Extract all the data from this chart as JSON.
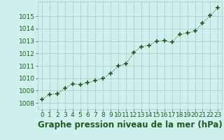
{
  "x": [
    0,
    1,
    2,
    3,
    4,
    5,
    6,
    7,
    8,
    9,
    10,
    11,
    12,
    13,
    14,
    15,
    16,
    17,
    18,
    19,
    20,
    21,
    22,
    23
  ],
  "y": [
    1008.3,
    1008.7,
    1008.75,
    1009.2,
    1009.55,
    1009.5,
    1009.65,
    1009.8,
    1010.0,
    1010.4,
    1011.0,
    1011.15,
    1012.1,
    1012.55,
    1012.65,
    1013.0,
    1013.05,
    1012.9,
    1013.55,
    1013.65,
    1013.8,
    1014.45,
    1015.05,
    1015.7
  ],
  "ylim": [
    1007.5,
    1016.2
  ],
  "yticks": [
    1008,
    1009,
    1010,
    1011,
    1012,
    1013,
    1014,
    1015
  ],
  "xticks": [
    0,
    1,
    2,
    3,
    4,
    5,
    6,
    7,
    8,
    9,
    10,
    11,
    12,
    13,
    14,
    15,
    16,
    17,
    18,
    19,
    20,
    21,
    22,
    23
  ],
  "xlabel": "Graphe pression niveau de la mer (hPa)",
  "line_color": "#1e5c1e",
  "marker": "+",
  "marker_size": 5,
  "marker_lw": 1.2,
  "line_width": 0.8,
  "bg_color": "#cff0ec",
  "grid_color": "#a8c8c4",
  "text_color": "#1e5c1e",
  "fig_bg": "#cff0ec",
  "tick_fontsize": 6.5,
  "xlabel_fontsize": 8.5
}
